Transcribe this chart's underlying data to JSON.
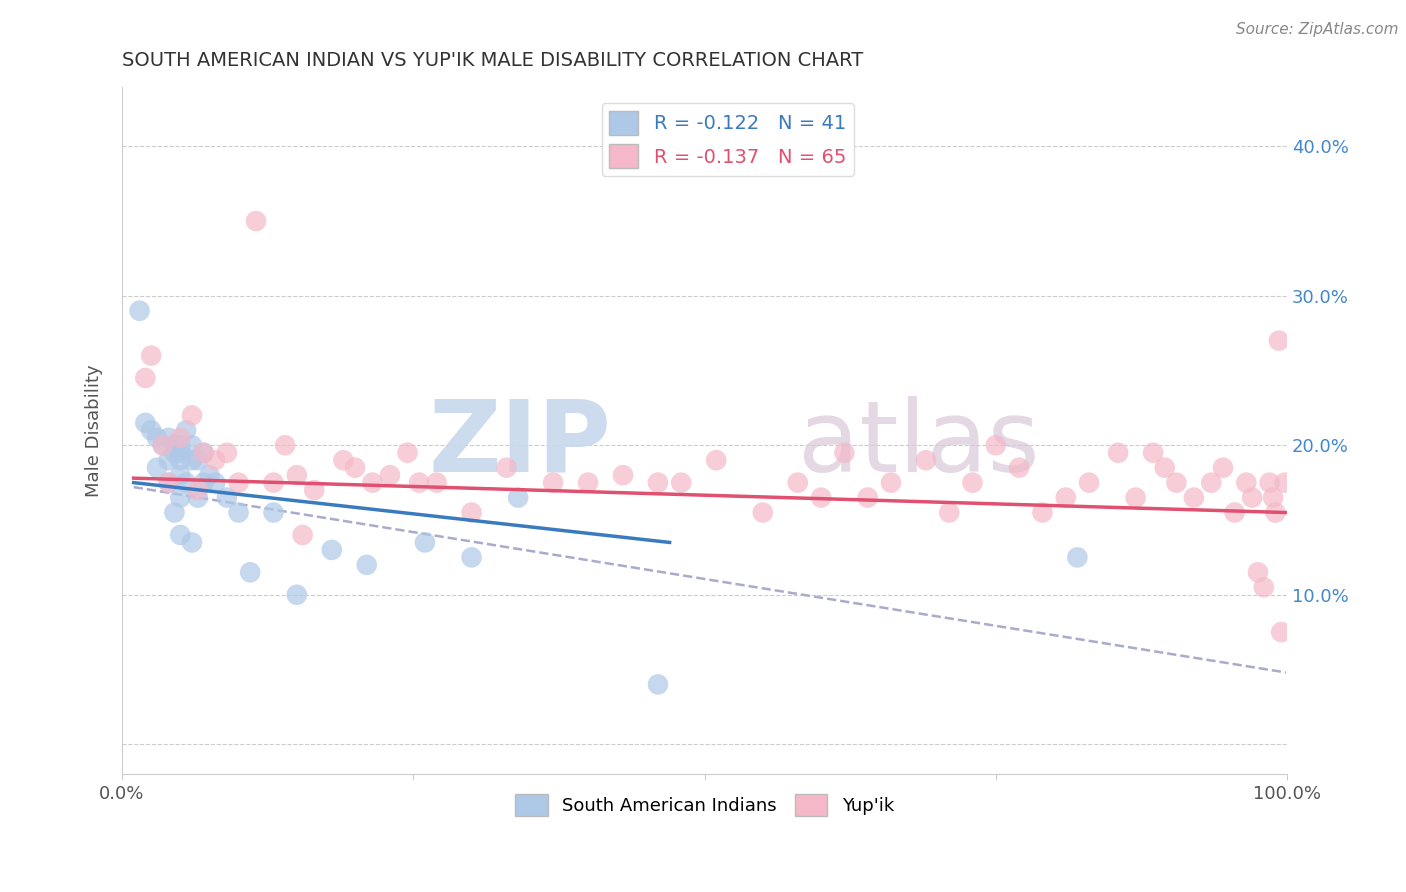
{
  "title": "SOUTH AMERICAN INDIAN VS YUP'IK MALE DISABILITY CORRELATION CHART",
  "source": "Source: ZipAtlas.com",
  "ylabel": "Male Disability",
  "watermark_zip": "ZIP",
  "watermark_atlas": "atlas",
  "legend_blue_label": "R = -0.122   N = 41",
  "legend_pink_label": "R = -0.137   N = 65",
  "xlim": [
    0,
    1.0
  ],
  "ylim": [
    -0.02,
    0.44
  ],
  "x_ticks": [
    0.0,
    0.25,
    0.5,
    0.75,
    1.0
  ],
  "x_tick_labels": [
    "0.0%",
    "",
    "",
    "",
    "100.0%"
  ],
  "y_ticks": [
    0.0,
    0.1,
    0.2,
    0.3,
    0.4
  ],
  "y_tick_labels_right": [
    "",
    "10.0%",
    "20.0%",
    "30.0%",
    "40.0%"
  ],
  "blue_color": "#aec8e8",
  "pink_color": "#f4b8c8",
  "blue_line_color": "#3a7abf",
  "pink_line_color": "#e05070",
  "dashed_line_color": "#aaaacc",
  "grid_color": "#cccccc",
  "background_color": "#ffffff",
  "right_tick_color": "#4488cc",
  "blue_scatter_x": [
    0.015,
    0.02,
    0.025,
    0.03,
    0.03,
    0.035,
    0.04,
    0.04,
    0.04,
    0.045,
    0.045,
    0.045,
    0.05,
    0.05,
    0.05,
    0.05,
    0.05,
    0.05,
    0.055,
    0.055,
    0.06,
    0.06,
    0.06,
    0.065,
    0.065,
    0.07,
    0.07,
    0.075,
    0.08,
    0.09,
    0.1,
    0.11,
    0.13,
    0.15,
    0.18,
    0.21,
    0.26,
    0.3,
    0.34,
    0.46,
    0.82
  ],
  "blue_scatter_y": [
    0.29,
    0.215,
    0.21,
    0.205,
    0.185,
    0.2,
    0.205,
    0.19,
    0.175,
    0.2,
    0.195,
    0.155,
    0.2,
    0.195,
    0.19,
    0.18,
    0.165,
    0.14,
    0.21,
    0.175,
    0.2,
    0.19,
    0.135,
    0.19,
    0.165,
    0.195,
    0.175,
    0.18,
    0.175,
    0.165,
    0.155,
    0.115,
    0.155,
    0.1,
    0.13,
    0.12,
    0.135,
    0.125,
    0.165,
    0.04,
    0.125
  ],
  "pink_scatter_x": [
    0.02,
    0.025,
    0.035,
    0.04,
    0.05,
    0.06,
    0.065,
    0.07,
    0.08,
    0.09,
    0.1,
    0.115,
    0.13,
    0.14,
    0.15,
    0.155,
    0.165,
    0.19,
    0.2,
    0.215,
    0.23,
    0.245,
    0.255,
    0.27,
    0.3,
    0.33,
    0.37,
    0.4,
    0.43,
    0.46,
    0.48,
    0.51,
    0.55,
    0.58,
    0.6,
    0.62,
    0.64,
    0.66,
    0.69,
    0.71,
    0.73,
    0.75,
    0.77,
    0.79,
    0.81,
    0.83,
    0.855,
    0.87,
    0.885,
    0.895,
    0.905,
    0.92,
    0.935,
    0.945,
    0.955,
    0.965,
    0.97,
    0.975,
    0.98,
    0.985,
    0.988,
    0.99,
    0.993,
    0.995,
    0.998
  ],
  "pink_scatter_y": [
    0.245,
    0.26,
    0.2,
    0.175,
    0.205,
    0.22,
    0.17,
    0.195,
    0.19,
    0.195,
    0.175,
    0.35,
    0.175,
    0.2,
    0.18,
    0.14,
    0.17,
    0.19,
    0.185,
    0.175,
    0.18,
    0.195,
    0.175,
    0.175,
    0.155,
    0.185,
    0.175,
    0.175,
    0.18,
    0.175,
    0.175,
    0.19,
    0.155,
    0.175,
    0.165,
    0.195,
    0.165,
    0.175,
    0.19,
    0.155,
    0.175,
    0.2,
    0.185,
    0.155,
    0.165,
    0.175,
    0.195,
    0.165,
    0.195,
    0.185,
    0.175,
    0.165,
    0.175,
    0.185,
    0.155,
    0.175,
    0.165,
    0.115,
    0.105,
    0.175,
    0.165,
    0.155,
    0.27,
    0.075,
    0.175
  ],
  "blue_line_x": [
    0.01,
    0.47
  ],
  "blue_line_y": [
    0.175,
    0.135
  ],
  "pink_line_x": [
    0.01,
    0.999
  ],
  "pink_line_y": [
    0.178,
    0.155
  ],
  "dashed_line_x": [
    0.01,
    0.999
  ],
  "dashed_line_y": [
    0.172,
    0.048
  ]
}
